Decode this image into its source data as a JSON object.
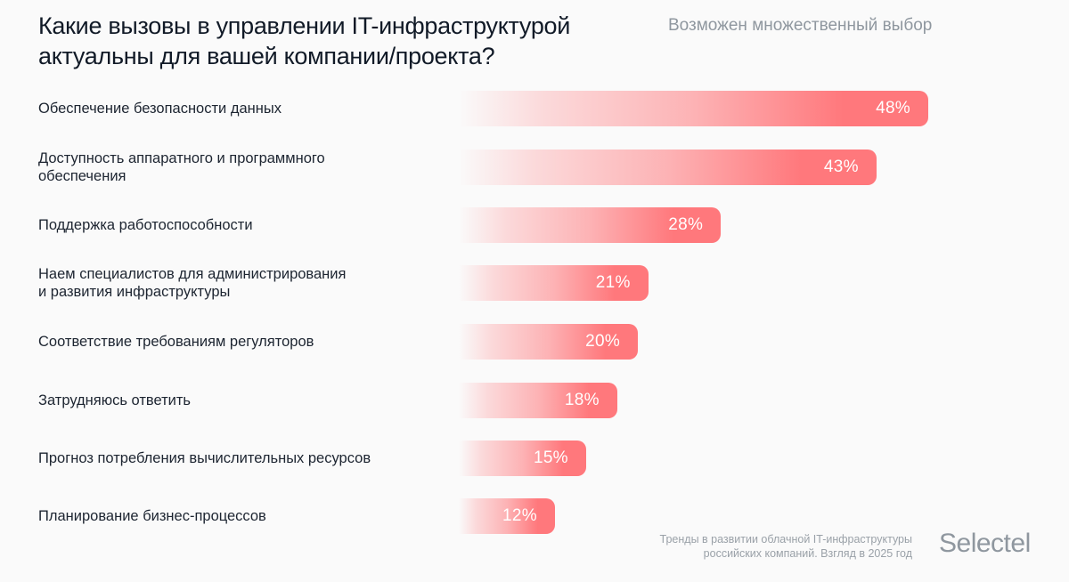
{
  "chart_data": {
    "type": "bar",
    "orientation": "horizontal",
    "title": "Какие вызовы в управлении IT-инфраструктурой актуальны для вашей компании/проекта?",
    "subtitle": "Возможен множественный выбор",
    "xlabel": "",
    "ylabel": "",
    "grid": false,
    "unit": "%",
    "categories": [
      "Обеспечение безопасности данных",
      "Доступность аппаратного и программного обеспечения",
      "Поддержка работоспособности",
      "Наем специалистов для администрирования и развития инфраструктуры",
      "Соответствие требованиям регуляторов",
      "Затрудняюсь ответить",
      "Прогноз потребления вычислительных ресурсов",
      "Планирование бизнес-процессов"
    ],
    "values": [
      48,
      43,
      28,
      21,
      20,
      18,
      15,
      12
    ],
    "data_labels": [
      "48%",
      "43%",
      "28%",
      "21%",
      "20%",
      "18%",
      "15%",
      "12%"
    ],
    "bar_color": "#ff787c"
  },
  "header": {
    "title_line1": "Какие вызовы в управлении IT-инфраструктурой",
    "title_line2": "актуальны для вашей компании/проекта?",
    "subtitle": "Возможен множественный выбор"
  },
  "rows": [
    {
      "label_lines": [
        "Обеспечение безопасности данных"
      ]
    },
    {
      "label_lines": [
        "Доступность аппаратного и программного",
        "обеспечения"
      ]
    },
    {
      "label_lines": [
        "Поддержка работоспособности"
      ]
    },
    {
      "label_lines": [
        "Наем специалистов для администрирования",
        "и развития инфраструктуры"
      ]
    },
    {
      "label_lines": [
        "Соответствие требованиям регуляторов"
      ]
    },
    {
      "label_lines": [
        "Затрудняюсь ответить"
      ]
    },
    {
      "label_lines": [
        "Прогноз потребления вычислительных ресурсов"
      ]
    },
    {
      "label_lines": [
        "Планирование бизнес-процессов"
      ]
    }
  ],
  "footer": {
    "source_line1": "Тренды в развитии облачной IT-инфраструктуры",
    "source_line2": "российских компаний. Взгляд в 2025 год",
    "brand": "Selectel"
  }
}
